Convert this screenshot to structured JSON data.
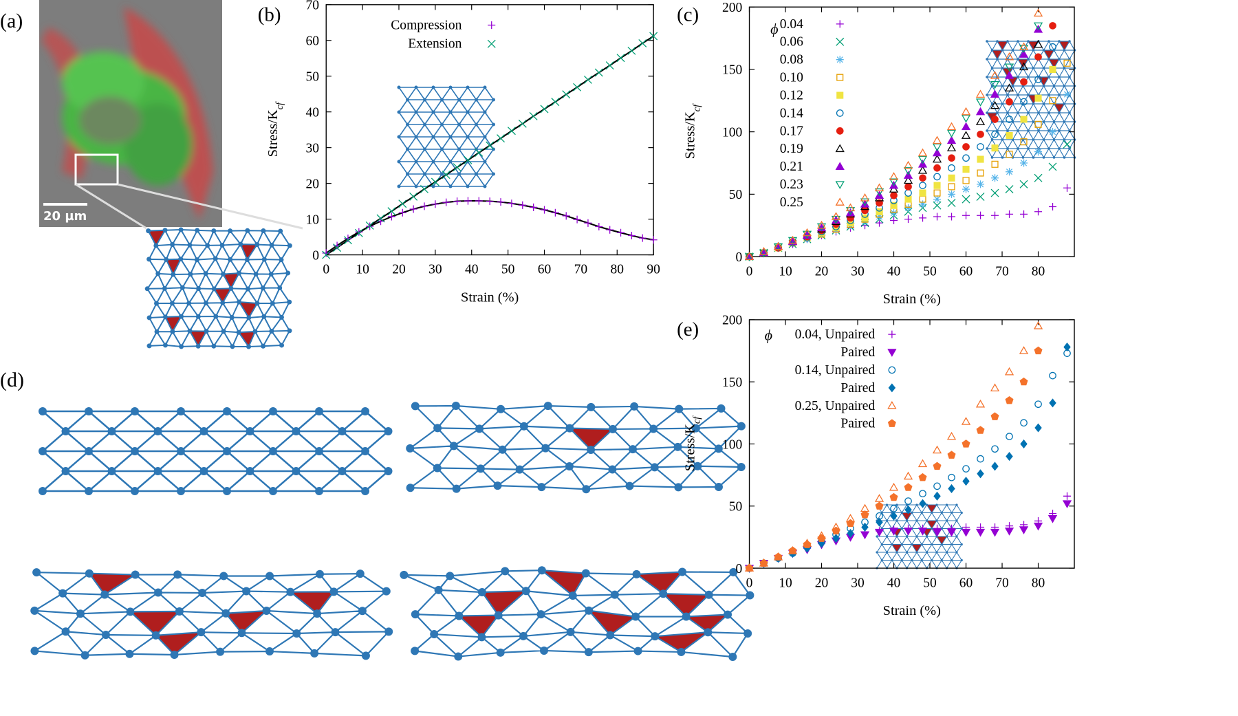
{
  "figure": {
    "panel_a": {
      "label": "(a)",
      "scale_bar": "20 µm"
    },
    "panel_d": {
      "label": "(d)"
    }
  },
  "chart_data": [
    {
      "type": "scatter",
      "panel_label": "(b)",
      "xlabel": "Strain (%)",
      "ylabel": [
        "Stress/K",
        "cf"
      ],
      "xlim": [
        0,
        90
      ],
      "ylim": [
        0,
        70
      ],
      "xticks": [
        0,
        10,
        20,
        30,
        40,
        50,
        60,
        70,
        80,
        90
      ],
      "yticks": [
        0,
        10,
        20,
        30,
        40,
        50,
        60,
        70
      ],
      "legend": "top",
      "line_color": "#000000",
      "x": [
        0,
        3,
        6,
        9,
        12,
        15,
        18,
        21,
        24,
        27,
        30,
        33,
        36,
        39,
        42,
        45,
        48,
        51,
        54,
        57,
        60,
        63,
        66,
        69,
        72,
        75,
        78,
        81,
        84,
        87,
        90
      ],
      "series": [
        {
          "name": "Compression",
          "color": "#9400d3",
          "marker": "plus",
          "values": [
            0.5,
            2.6,
            4.6,
            6.4,
            8.0,
            9.4,
            10.7,
            11.8,
            12.8,
            13.6,
            14.2,
            14.7,
            15.0,
            15.1,
            15.1,
            15.0,
            14.8,
            14.4,
            13.9,
            13.3,
            12.6,
            11.8,
            10.9,
            9.9,
            8.9,
            7.9,
            7.0,
            6.2,
            5.4,
            4.7,
            4.2
          ]
        },
        {
          "name": "Extension",
          "color": "#009e73",
          "marker": "cross",
          "values": [
            0,
            2,
            4.1,
            6.1,
            8.2,
            10.2,
            12.2,
            14.3,
            16.3,
            18.4,
            20.4,
            22.4,
            24.5,
            26.5,
            28.6,
            30.6,
            32.6,
            34.7,
            36.7,
            38.8,
            40.8,
            42.8,
            44.9,
            46.9,
            49,
            51,
            53,
            55.1,
            57.1,
            59.2,
            61.2
          ]
        }
      ]
    },
    {
      "type": "scatter",
      "panel_label": "(c)",
      "xlabel": "Strain (%)",
      "ylabel": [
        "Stress/K",
        "cf"
      ],
      "xlim": [
        0,
        90
      ],
      "ylim": [
        0,
        200
      ],
      "xticks": [
        0,
        10,
        20,
        30,
        40,
        50,
        60,
        70,
        80
      ],
      "yticks": [
        0,
        50,
        100,
        150,
        200
      ],
      "legend": "top-left",
      "legend_title": "ϕ",
      "x": [
        0,
        4,
        8,
        12,
        16,
        20,
        24,
        28,
        32,
        36,
        40,
        44,
        48,
        52,
        56,
        60,
        64,
        68,
        72,
        76,
        80,
        84,
        88
      ],
      "series": [
        {
          "name": "0.04",
          "color": "#9400d3",
          "marker": "plus",
          "values": [
            0,
            3,
            7,
            10,
            14,
            17,
            20,
            23,
            25,
            27,
            29,
            30,
            31,
            32,
            32,
            33,
            33,
            33,
            34,
            34,
            36,
            40,
            55
          ]
        },
        {
          "name": "0.06",
          "color": "#009e73",
          "marker": "cross",
          "values": [
            0,
            3,
            7,
            10,
            14,
            17,
            21,
            24,
            27,
            30,
            33,
            36,
            39,
            41,
            43,
            46,
            48,
            51,
            54,
            58,
            63,
            72,
            90
          ]
        },
        {
          "name": "0.08",
          "color": "#56b4e9",
          "marker": "star",
          "values": [
            0,
            3,
            7,
            11,
            14,
            18,
            21,
            25,
            28,
            32,
            35,
            39,
            42,
            46,
            50,
            54,
            58,
            63,
            68,
            75,
            84,
            100,
            130
          ]
        },
        {
          "name": "0.10",
          "color": "#e69f00",
          "marker": "square",
          "values": [
            0,
            3,
            7,
            11,
            15,
            18,
            22,
            26,
            30,
            34,
            38,
            42,
            46,
            51,
            56,
            61,
            67,
            74,
            82,
            92,
            106,
            125,
            155
          ]
        },
        {
          "name": "0.12",
          "color": "#f0e442",
          "marker": "square-filled",
          "values": [
            0,
            3,
            7,
            11,
            15,
            19,
            23,
            27,
            31,
            36,
            41,
            46,
            51,
            57,
            63,
            70,
            78,
            87,
            97,
            110,
            127,
            150,
            null
          ]
        },
        {
          "name": "0.14",
          "color": "#0072b2",
          "marker": "circle",
          "values": [
            0,
            3,
            7,
            11,
            15,
            20,
            24,
            29,
            34,
            39,
            45,
            51,
            57,
            64,
            71,
            79,
            88,
            98,
            110,
            124,
            142,
            168,
            null
          ]
        },
        {
          "name": "0.17",
          "color": "#e51e10",
          "marker": "circle-filled",
          "values": [
            0,
            3,
            7,
            12,
            16,
            21,
            26,
            31,
            37,
            43,
            49,
            56,
            63,
            71,
            79,
            88,
            98,
            110,
            124,
            140,
            160,
            185,
            null
          ]
        },
        {
          "name": "0.19",
          "color": "#000000",
          "marker": "triangle",
          "values": [
            0,
            3,
            8,
            12,
            17,
            22,
            28,
            34,
            40,
            47,
            54,
            61,
            69,
            78,
            87,
            97,
            108,
            121,
            135,
            152,
            170,
            null,
            null
          ]
        },
        {
          "name": "0.21",
          "color": "#9400d3",
          "marker": "triangle-filled",
          "values": [
            0,
            3,
            8,
            12,
            17,
            23,
            29,
            35,
            42,
            49,
            57,
            65,
            74,
            83,
            93,
            104,
            116,
            130,
            145,
            162,
            182,
            null,
            null
          ]
        },
        {
          "name": "0.23",
          "color": "#009e73",
          "marker": "triangle-down",
          "values": [
            0,
            3,
            8,
            13,
            18,
            24,
            30,
            37,
            44,
            52,
            60,
            69,
            78,
            88,
            99,
            111,
            124,
            138,
            152,
            167,
            185,
            null,
            null
          ]
        },
        {
          "name": "0.25",
          "color": "#f4722b",
          "marker": "triangle",
          "values": [
            0,
            4,
            8,
            13,
            19,
            25,
            32,
            39,
            47,
            55,
            64,
            73,
            83,
            93,
            104,
            116,
            130,
            145,
            160,
            168,
            195,
            null,
            null
          ]
        }
      ]
    },
    {
      "type": "scatter",
      "panel_label": "(e)",
      "xlabel": "Strain (%)",
      "ylabel": [
        "Stress/K",
        "cf"
      ],
      "xlim": [
        0,
        90
      ],
      "ylim": [
        0,
        200
      ],
      "xticks": [
        0,
        10,
        20,
        30,
        40,
        50,
        60,
        70,
        80
      ],
      "yticks": [
        0,
        50,
        100,
        150,
        200
      ],
      "legend": "top-left",
      "legend_title": "ϕ",
      "x": [
        0,
        4,
        8,
        12,
        16,
        20,
        24,
        28,
        32,
        36,
        40,
        44,
        48,
        52,
        56,
        60,
        64,
        68,
        72,
        76,
        80,
        84,
        88
      ],
      "series": [
        {
          "name": "0.04, Unpaired",
          "color": "#9400d3",
          "marker": "plus",
          "values": [
            0,
            4,
            8,
            12,
            16,
            20,
            24,
            27,
            29,
            30,
            31,
            32,
            32,
            32,
            32,
            33,
            33,
            33,
            34,
            35,
            38,
            44,
            58
          ]
        },
        {
          "name": "Paired",
          "color": "#9400d3",
          "marker": "triangle-down-filled",
          "values": [
            0,
            4,
            8,
            12,
            15,
            19,
            22,
            25,
            27,
            29,
            30,
            30,
            30,
            29,
            29,
            29,
            29,
            29,
            30,
            31,
            34,
            40,
            52
          ]
        },
        {
          "name": "0.14, Unpaired",
          "color": "#0072b2",
          "marker": "circle",
          "values": [
            0,
            4,
            8,
            12,
            17,
            22,
            27,
            32,
            37,
            42,
            48,
            54,
            60,
            66,
            73,
            80,
            88,
            96,
            106,
            117,
            132,
            155,
            173
          ]
        },
        {
          "name": "Paired",
          "color": "#0072b2",
          "marker": "diamond-filled",
          "values": [
            0,
            4,
            8,
            12,
            16,
            20,
            24,
            28,
            33,
            37,
            42,
            47,
            52,
            58,
            64,
            70,
            76,
            82,
            90,
            100,
            113,
            133,
            178
          ]
        },
        {
          "name": "0.25, Unpaired",
          "color": "#f4722b",
          "marker": "triangle",
          "values": [
            0,
            4,
            9,
            14,
            20,
            26,
            33,
            40,
            48,
            56,
            65,
            74,
            84,
            95,
            106,
            118,
            132,
            145,
            158,
            175,
            195,
            null,
            null
          ]
        },
        {
          "name": "Paired",
          "color": "#f4722b",
          "marker": "pentagon-filled",
          "values": [
            0,
            4,
            9,
            14,
            19,
            24,
            30,
            36,
            43,
            50,
            57,
            65,
            73,
            82,
            91,
            100,
            111,
            122,
            135,
            150,
            175,
            null,
            null
          ]
        }
      ]
    }
  ]
}
